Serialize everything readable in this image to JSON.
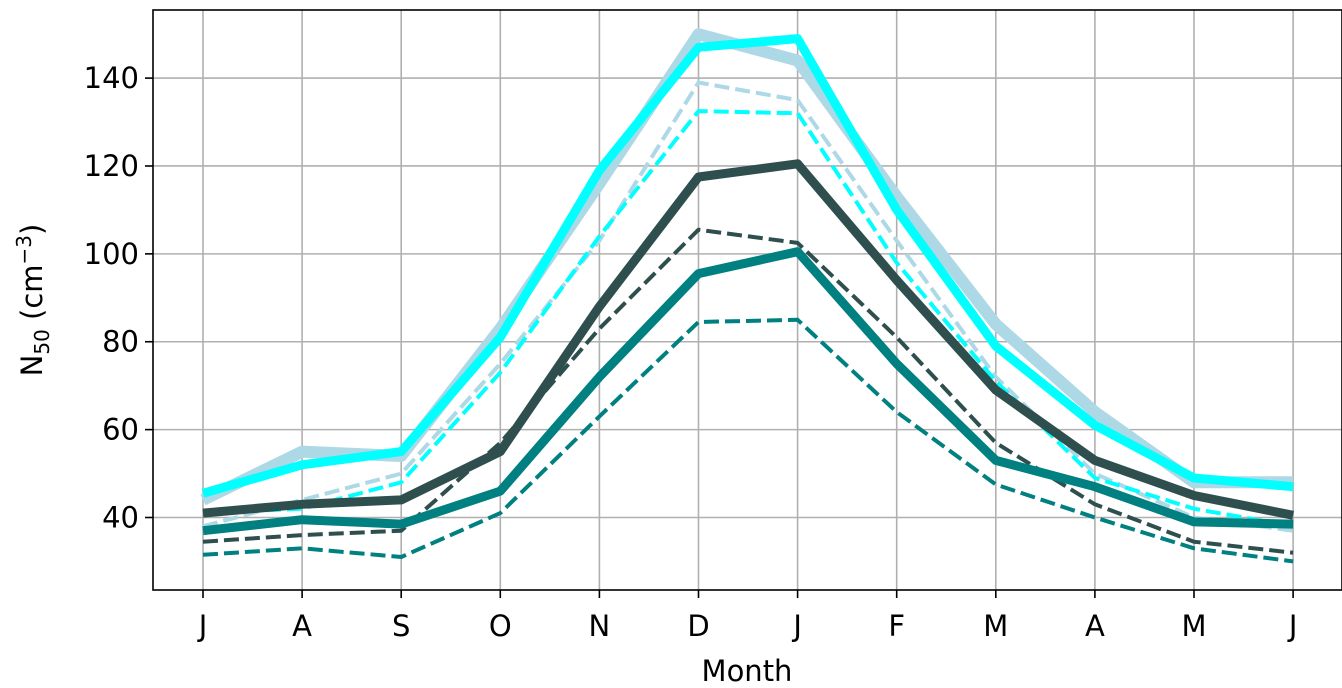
{
  "chart_data": {
    "type": "line",
    "categories": [
      "J",
      "A",
      "S",
      "O",
      "N",
      "D",
      "J",
      "F",
      "M",
      "A",
      "M",
      "J"
    ],
    "xlabel": "Month",
    "ylabel_base": "N",
    "ylabel_sub": "50",
    "ylabel_unit_open": " (cm",
    "ylabel_sup": "−3",
    "ylabel_unit_close": ")",
    "ylim": [
      23.5,
      155.5
    ],
    "yticks": [
      40,
      60,
      80,
      100,
      120,
      140
    ],
    "grid": true,
    "series": [
      {
        "color": "#add8e6",
        "dashed": false,
        "width": 12,
        "values": [
          44,
          55,
          54,
          83,
          116,
          150,
          144,
          113,
          84,
          64,
          48,
          48
        ]
      },
      {
        "color": "#add8e6",
        "dashed": true,
        "width": 4,
        "values": [
          38,
          44,
          50,
          75,
          103,
          139,
          135,
          103,
          72,
          50,
          40,
          37
        ]
      },
      {
        "color": "#00ffff",
        "dashed": false,
        "width": 9,
        "values": [
          45.5,
          52,
          55,
          81,
          119,
          147,
          149,
          110,
          79,
          61,
          49,
          47
        ]
      },
      {
        "color": "#00ffff",
        "dashed": true,
        "width": 4,
        "values": [
          41,
          42,
          48,
          73,
          104,
          132.5,
          132,
          98,
          71,
          49,
          42,
          38
        ]
      },
      {
        "color": "#2f4f4f",
        "dashed": false,
        "width": 9,
        "values": [
          41,
          43,
          44,
          55,
          88,
          117.5,
          120.5,
          94,
          69,
          53,
          45,
          40.5
        ]
      },
      {
        "color": "#2f4f4f",
        "dashed": true,
        "width": 4,
        "values": [
          34.5,
          36,
          37,
          57,
          83,
          105.5,
          102.5,
          81,
          57,
          43,
          34.5,
          32
        ]
      },
      {
        "color": "#008080",
        "dashed": false,
        "width": 9,
        "values": [
          37,
          39.5,
          38.5,
          46,
          72,
          95.5,
          100.5,
          75,
          53,
          47,
          39,
          38.5
        ]
      },
      {
        "color": "#008080",
        "dashed": true,
        "width": 4,
        "values": [
          31.5,
          33,
          31,
          41,
          63,
          84.5,
          85,
          64,
          47.5,
          40,
          33,
          30
        ]
      }
    ]
  }
}
